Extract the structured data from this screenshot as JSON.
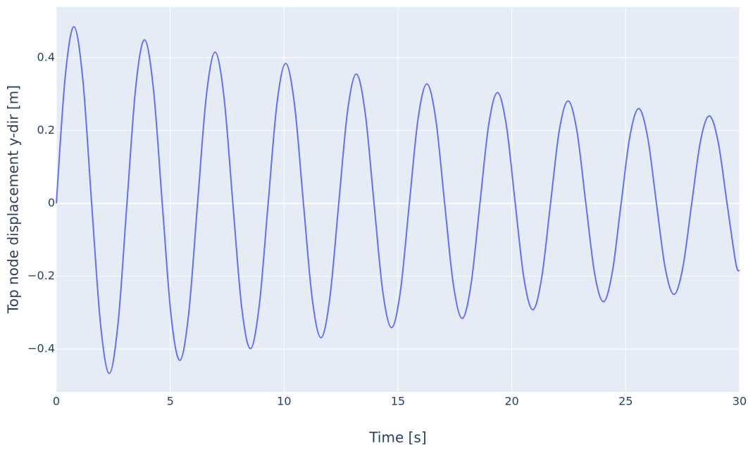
{
  "chart_data": {
    "type": "line",
    "x_label": "Time [s]",
    "y_label": "Top node displacement y-dir [m]",
    "xlim": [
      0,
      30
    ],
    "ylim": [
      -0.518,
      0.539
    ],
    "xticks": [
      0,
      5,
      10,
      15,
      20,
      25,
      30
    ],
    "yticks": [
      {
        "value": -0.4,
        "label": "−0.4"
      },
      {
        "value": -0.2,
        "label": "−0.2"
      },
      0,
      0.2,
      0.4
    ],
    "grid": true,
    "x": [
      0,
      0.3875,
      0.775,
      1.1625,
      1.55,
      1.9375,
      2.325,
      2.7125,
      3.1,
      3.4875,
      3.875,
      4.2625,
      4.65,
      5.0375,
      5.425,
      5.8125,
      6.2,
      6.5875,
      6.975,
      7.3625,
      7.75,
      8.1375,
      8.525,
      8.9125,
      9.3,
      9.6875,
      10.075,
      10.4625,
      10.85,
      11.2375,
      11.625,
      12.0125,
      12.4,
      12.7875,
      13.175,
      13.5625,
      13.95,
      14.3375,
      14.725,
      15.1125,
      15.5,
      15.8875,
      16.275,
      16.6625,
      17.05,
      17.4375,
      17.825,
      18.2125,
      18.6,
      18.9875,
      19.375,
      19.7625,
      20.15,
      20.5375,
      20.925,
      21.3125,
      21.7,
      22.0875,
      22.475,
      22.8625,
      23.25,
      23.6375,
      24.025,
      24.4125,
      24.8,
      25.1875,
      25.575,
      25.9625,
      26.35,
      26.7375,
      27.125,
      27.5125,
      27.9,
      28.2875,
      28.675,
      29.0625,
      29.45,
      29.8375,
      30
    ],
    "series": [
      {
        "color": "#636efa",
        "values": [
          0,
          0.346,
          0.485,
          0.34,
          0,
          -0.33,
          -0.467,
          -0.327,
          0,
          0.32,
          0.449,
          0.314,
          0,
          -0.308,
          -0.431,
          -0.302,
          0,
          0.296,
          0.415,
          0.291,
          0,
          -0.285,
          -0.399,
          -0.279,
          0,
          0.274,
          0.384,
          0.269,
          0,
          -0.263,
          -0.369,
          -0.258,
          0,
          0.253,
          0.355,
          0.248,
          0,
          -0.244,
          -0.341,
          -0.239,
          0,
          0.234,
          0.328,
          0.23,
          0,
          -0.225,
          -0.316,
          -0.221,
          0,
          0.217,
          0.304,
          0.213,
          0,
          -0.208,
          -0.292,
          -0.204,
          0,
          0.201,
          0.281,
          0.197,
          0,
          -0.193,
          -0.27,
          -0.189,
          0,
          0.185,
          0.26,
          0.182,
          0,
          -0.178,
          -0.25,
          -0.175,
          0,
          0.172,
          0.24,
          0.168,
          0,
          -0.165,
          -0.185
        ]
      }
    ]
  }
}
